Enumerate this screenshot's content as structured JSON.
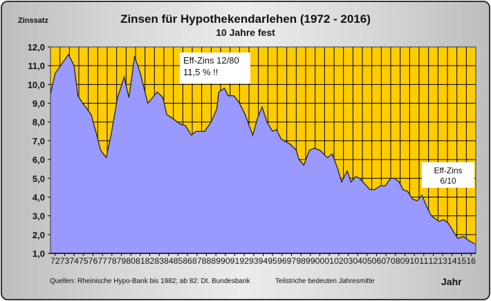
{
  "chart_data": {
    "type": "area",
    "title": "Zinsen für Hypothekendarlehen (1972 - 2016)",
    "subtitle": "10 Jahre fest",
    "ylabel": "Zinssatz",
    "xlabel": "Jahr",
    "ylim": [
      1,
      12
    ],
    "xlim": [
      1972,
      2017
    ],
    "y_ticks": [
      "1,0",
      "2,0",
      "3,0",
      "4,0",
      "5,0",
      "6,0",
      "7,0",
      "8,0",
      "9,0",
      "10,0",
      "11,0",
      "12,0"
    ],
    "x_ticks": [
      "72",
      "73",
      "74",
      "75",
      "76",
      "77",
      "78",
      "79",
      "80",
      "81",
      "82",
      "83",
      "84",
      "85",
      "86",
      "87",
      "88",
      "89",
      "90",
      "91",
      "92",
      "93",
      "94",
      "95",
      "96",
      "97",
      "98",
      "99",
      "00",
      "01",
      "02",
      "03",
      "04",
      "05",
      "06",
      "07",
      "08",
      "09",
      "10",
      "11",
      "12",
      "13",
      "14",
      "15",
      "16"
    ],
    "grid": true,
    "colors": {
      "area": "#9999ff",
      "background": "#ffcc00",
      "line": "#222222",
      "grid": "#000000"
    },
    "x": [
      1972.0,
      1972.5,
      1973.9,
      1974.5,
      1974.9,
      1975.4,
      1976.3,
      1976.9,
      1977.3,
      1977.9,
      1978.4,
      1979.1,
      1979.8,
      1980.3,
      1980.9,
      1981.5,
      1982.3,
      1983.3,
      1983.9,
      1984.3,
      1984.9,
      1985.7,
      1986.3,
      1986.9,
      1987.4,
      1988.3,
      1989.0,
      1989.6,
      1989.8,
      1990.4,
      1990.8,
      1991.4,
      1992.0,
      1992.6,
      1993.4,
      1993.9,
      1994.4,
      1994.9,
      1995.5,
      1995.9,
      1996.4,
      1997.4,
      1998.0,
      1998.3,
      1998.8,
      1999.4,
      1999.9,
      2000.5,
      2001.3,
      2001.8,
      2002.4,
      2002.8,
      2003.4,
      2003.8,
      2004.3,
      2004.7,
      2005.8,
      2006.3,
      2006.9,
      2007.4,
      2008.0,
      2008.4,
      2008.9,
      2009.3,
      2009.8,
      2010.3,
      2010.8,
      2011.3,
      2011.8,
      2012.3,
      2013.1,
      2013.6,
      2014.1,
      2014.7,
      2015.1,
      2015.7,
      2016.2,
      2016.9
    ],
    "values": [
      9.5,
      10.6,
      11.6,
      11.0,
      9.4,
      9.0,
      8.4,
      7.3,
      6.5,
      6.1,
      7.3,
      9.3,
      10.4,
      9.3,
      11.5,
      10.6,
      9.0,
      9.6,
      9.3,
      8.4,
      8.2,
      7.9,
      7.8,
      7.3,
      7.5,
      7.5,
      8.0,
      8.7,
      9.6,
      9.8,
      9.4,
      9.4,
      9.0,
      8.4,
      7.3,
      8.2,
      8.8,
      8.0,
      7.5,
      7.6,
      7.1,
      6.8,
      6.5,
      6.0,
      5.7,
      6.5,
      6.6,
      6.5,
      6.1,
      6.3,
      5.5,
      4.8,
      5.4,
      4.8,
      5.1,
      5.0,
      4.4,
      4.4,
      4.6,
      4.6,
      5.0,
      5.0,
      4.8,
      4.4,
      4.3,
      3.9,
      3.8,
      4.1,
      3.5,
      3.0,
      2.7,
      2.8,
      2.6,
      2.1,
      1.8,
      1.9,
      1.7,
      1.5
    ],
    "annotations": [
      {
        "lines": [
          "Eff-Zins 12/80",
          "11,5 %  !!"
        ]
      },
      {
        "lines": [
          "Eff-Zins",
          "6/10"
        ]
      }
    ],
    "footnotes": {
      "source": "Quellen: Rheinische Hypo-Bank bis 1982; ab 82: Dt. Bundesbank",
      "note": "Teilstriche bedeuten Jahresmitte"
    }
  }
}
